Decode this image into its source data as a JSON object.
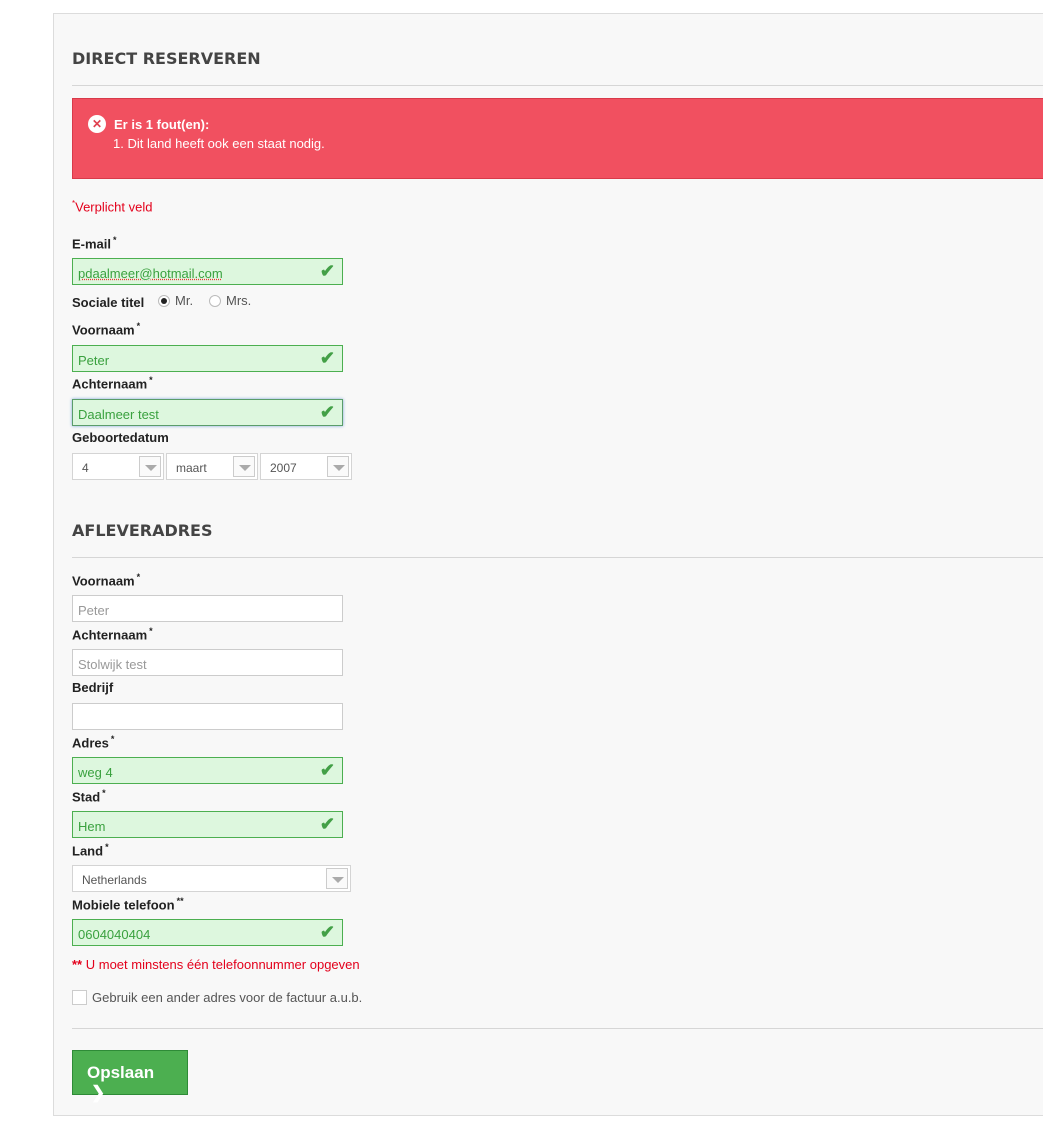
{
  "section1": {
    "title": "DIRECT RESERVEREN"
  },
  "error": {
    "icon": "close-circle-icon",
    "title": "Er is 1 fout(en):",
    "messages": [
      "1.  Dit land heeft ook een staat nodig."
    ],
    "color": "#f15060"
  },
  "required_note": {
    "star": "*",
    "text": "Verplicht veld"
  },
  "personal": {
    "email": {
      "label": "E-mail",
      "req": "*",
      "value": "pdaalmeer@hotmail.com"
    },
    "title": {
      "label": "Sociale titel",
      "options": [
        "Mr.",
        "Mrs."
      ],
      "selected": "Mr."
    },
    "firstname": {
      "label": "Voornaam",
      "req": "*",
      "value": "Peter"
    },
    "lastname": {
      "label": "Achternaam",
      "req": "*",
      "value": "Daalmeer test"
    },
    "birthdate": {
      "label": "Geboortedatum",
      "day": "4",
      "month": "maart",
      "year": "2007"
    }
  },
  "section2": {
    "title": "AFLEVERADRES"
  },
  "address": {
    "firstname": {
      "label": "Voornaam",
      "req": "*",
      "placeholder": "Peter"
    },
    "lastname": {
      "label": "Achternaam",
      "req": "*",
      "placeholder": "Stolwijk test"
    },
    "company": {
      "label": "Bedrijf",
      "value": ""
    },
    "street": {
      "label": "Adres",
      "req": "*",
      "value": "weg 4"
    },
    "city": {
      "label": "Stad",
      "req": "*",
      "value": "Hem"
    },
    "country": {
      "label": "Land",
      "req": "*",
      "value": "Netherlands"
    },
    "mobile": {
      "label": "Mobiele telefoon",
      "req": "**",
      "value": "0604040404"
    }
  },
  "phone_note": {
    "stars": "**",
    "text": " U moet minstens één telefoonnummer opgeven"
  },
  "invoice_checkbox": {
    "label": "Gebruik een ander adres voor de factuur a.u.b.",
    "checked": false
  },
  "save_button": {
    "label": "Opslaan",
    "icon": "chevron-right-icon",
    "color": "#4caf50"
  }
}
